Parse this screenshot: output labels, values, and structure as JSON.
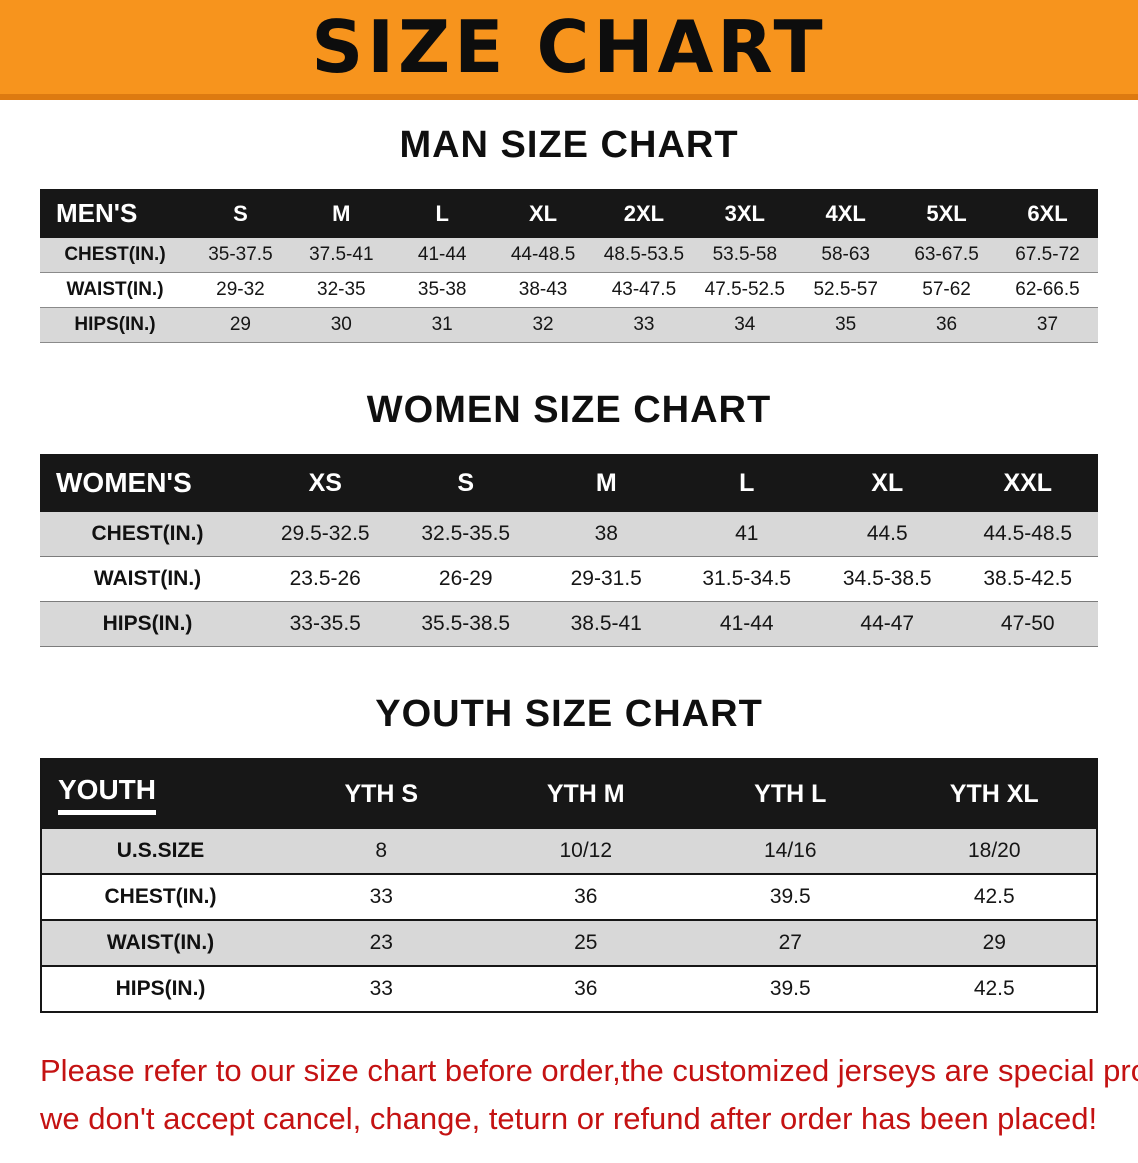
{
  "banner": {
    "title": "SIZE CHART"
  },
  "colors": {
    "banner_orange": "#F7941D",
    "banner_edge": "#DD7A10",
    "header_black": "#171717",
    "row_shade": "#D8D8D8",
    "disclaimer_red": "#C41212"
  },
  "sections": [
    {
      "id": "men",
      "heading": "MAN SIZE CHART",
      "table": {
        "header": [
          "MEN'S",
          "S",
          "M",
          "L",
          "XL",
          "2XL",
          "3XL",
          "4XL",
          "5XL",
          "6XL"
        ],
        "rows": [
          [
            "CHEST(IN.)",
            "35-37.5",
            "37.5-41",
            "41-44",
            "44-48.5",
            "48.5-53.5",
            "53.5-58",
            "58-63",
            "63-67.5",
            "67.5-72"
          ],
          [
            "WAIST(IN.)",
            "29-32",
            "32-35",
            "35-38",
            "38-43",
            "43-47.5",
            "47.5-52.5",
            "52.5-57",
            "57-62",
            "62-66.5"
          ],
          [
            "HIPS(IN.)",
            "29",
            "30",
            "31",
            "32",
            "33",
            "34",
            "35",
            "36",
            "37"
          ]
        ]
      }
    },
    {
      "id": "women",
      "heading": "WOMEN SIZE CHART",
      "table": {
        "header": [
          "WOMEN'S",
          "XS",
          "S",
          "M",
          "L",
          "XL",
          "XXL"
        ],
        "rows": [
          [
            "CHEST(IN.)",
            "29.5-32.5",
            "32.5-35.5",
            "38",
            "41",
            "44.5",
            "44.5-48.5"
          ],
          [
            "WAIST(IN.)",
            "23.5-26",
            "26-29",
            "29-31.5",
            "31.5-34.5",
            "34.5-38.5",
            "38.5-42.5"
          ],
          [
            "HIPS(IN.)",
            "33-35.5",
            "35.5-38.5",
            "38.5-41",
            "41-44",
            "44-47",
            "47-50"
          ]
        ]
      }
    },
    {
      "id": "youth",
      "heading": "YOUTH SIZE CHART",
      "table": {
        "header": [
          "YOUTH",
          "YTH S",
          "YTH M",
          "YTH L",
          "YTH XL"
        ],
        "rows": [
          [
            "U.S.SIZE",
            "8",
            "10/12",
            "14/16",
            "18/20"
          ],
          [
            "CHEST(IN.)",
            "33",
            "36",
            "39.5",
            "42.5"
          ],
          [
            "WAIST(IN.)",
            "23",
            "25",
            "27",
            "29"
          ],
          [
            "HIPS(IN.)",
            "33",
            "36",
            "39.5",
            "42.5"
          ]
        ]
      }
    }
  ],
  "disclaimer": {
    "line1": "Please refer to our size chart before order,the customized jerseys are special products,",
    "line2": "we don't accept cancel, change, teturn or refund after order has been placed!"
  }
}
